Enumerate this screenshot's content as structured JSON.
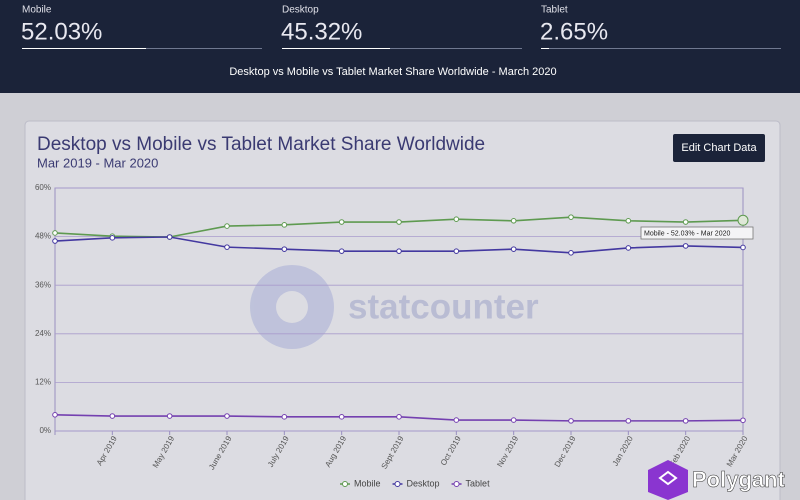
{
  "header": {
    "stats": [
      {
        "name": "Mobile",
        "value": "52.03%"
      },
      {
        "name": "Desktop",
        "value": "45.32%"
      },
      {
        "name": "Tablet",
        "value": "2.65%"
      }
    ],
    "subtitle": "Desktop vs Mobile vs Tablet Market Share Worldwide - March 2020"
  },
  "button": "Edit Chart Data",
  "brand": "Polygant",
  "chart_data": {
    "type": "line",
    "title": "Desktop vs Mobile vs Tablet Market Share Worldwide",
    "subtitle": "Mar 2019 - Mar 2020",
    "watermark": "statcounter",
    "tooltip": "Mobile - 52.03% - Mar 2020",
    "categories": [
      null,
      "Apr 2019",
      "May 2019",
      "June 2019",
      "July 2019",
      "Aug 2019",
      "Sept 2019",
      "Oct 2019",
      "Nov 2019",
      "Dec 2019",
      "Jan 2020",
      "Feb 2020",
      "Mar 2020"
    ],
    "series": [
      {
        "name": "Mobile",
        "color": "#5e9a50",
        "values": [
          48.9,
          48.1,
          47.9,
          50.6,
          50.9,
          51.6,
          51.6,
          52.3,
          51.9,
          52.8,
          51.9,
          51.6,
          52.03
        ]
      },
      {
        "name": "Desktop",
        "color": "#4338a0",
        "values": [
          46.9,
          47.7,
          47.9,
          45.4,
          44.9,
          44.4,
          44.4,
          44.4,
          44.9,
          44.0,
          45.2,
          45.7,
          45.32
        ]
      },
      {
        "name": "Tablet",
        "color": "#7440b0",
        "values": [
          4.0,
          3.7,
          3.7,
          3.7,
          3.5,
          3.5,
          3.5,
          2.7,
          2.7,
          2.5,
          2.5,
          2.5,
          2.65
        ]
      }
    ],
    "ylim": [
      0,
      60
    ],
    "yticks": [
      {
        "value": 0,
        "label": "0%"
      },
      {
        "value": 12,
        "label": "12%"
      },
      {
        "value": 24,
        "label": "24%"
      },
      {
        "value": 36,
        "label": "36%"
      },
      {
        "value": 48,
        "label": "48%"
      },
      {
        "value": 60,
        "label": "60%"
      }
    ],
    "grid": true
  }
}
